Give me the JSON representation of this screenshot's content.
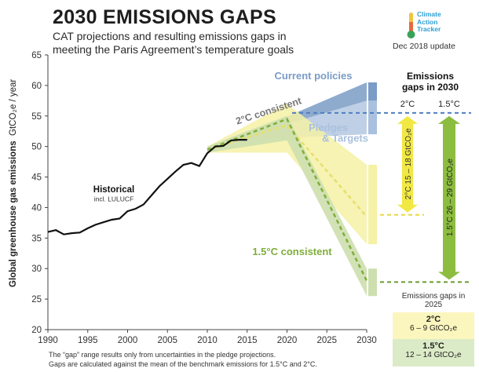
{
  "header": {
    "title": "2030 EMISSIONS GAPS",
    "subtitle": "CAT projections and resulting emissions gaps in meeting the Paris Agreement’s temperature goals",
    "date": "Dec 2018 update",
    "logo": [
      "Climate",
      "Action",
      "Tracker"
    ]
  },
  "colors": {
    "historical": "#111111",
    "current_policies": "#7a9cc6",
    "pledges": "#a9c0de",
    "two_c": "#e6e06b",
    "two_c_band": "#f5f1a6",
    "one_five_c": "#7fae3a",
    "one_five_c_band": "#cddfae"
  },
  "chart_data": {
    "type": "line",
    "ylabel": "Global greenhouse gas emissions",
    "yunit": "GtCO₂e / year",
    "xlim": [
      1990,
      2030
    ],
    "ylim": [
      20,
      65
    ],
    "xticks": [
      1990,
      1995,
      2000,
      2005,
      2010,
      2015,
      2020,
      2025,
      2030
    ],
    "yticks": [
      20,
      25,
      30,
      35,
      40,
      45,
      50,
      55,
      60,
      65
    ],
    "grid": false,
    "series": [
      {
        "name": "Historical",
        "note": "incl. LULUCF",
        "x": [
          1990,
          1991,
          1992,
          1993,
          1994,
          1995,
          1996,
          1997,
          1998,
          1999,
          2000,
          2001,
          2002,
          2003,
          2004,
          2005,
          2006,
          2007,
          2008,
          2009,
          2010,
          2011,
          2012,
          2013,
          2014,
          2015
        ],
        "y": [
          36.0,
          36.3,
          35.6,
          35.8,
          35.9,
          36.6,
          37.2,
          37.6,
          38.0,
          38.2,
          39.4,
          39.8,
          40.5,
          42.0,
          43.5,
          44.7,
          45.9,
          47.0,
          47.3,
          46.8,
          48.9,
          50.0,
          50.1,
          51.0,
          51.1,
          51.1
        ]
      },
      {
        "name": "Current policies",
        "x": [
          2013,
          2030
        ],
        "upper": [
          51.0,
          60.5
        ],
        "lower": [
          51.0,
          57.5
        ]
      },
      {
        "name": "Pledges & Targets",
        "x": [
          2013,
          2030
        ],
        "upper": [
          51.0,
          57.5
        ],
        "lower": [
          51.0,
          52.0
        ]
      },
      {
        "name": "2°C consistent",
        "x": [
          2010,
          2020,
          2030
        ],
        "mean": [
          49.5,
          53.5,
          38.5
        ],
        "upper": [
          50.0,
          57.0,
          47.0
        ],
        "lower": [
          49.0,
          49.0,
          34.0
        ]
      },
      {
        "name": "1.5°C consistent",
        "x": [
          2010,
          2020,
          2030
        ],
        "mean": [
          49.5,
          54.5,
          28.0
        ],
        "upper": [
          50.0,
          55.0,
          30.0
        ],
        "lower": [
          49.0,
          51.0,
          25.5
        ]
      }
    ],
    "benchmarks_2030": {
      "two_c": 38.8,
      "one_five_c": 27.8,
      "pledges_mean": 55.5
    }
  },
  "gaps_2030": {
    "title": "Emissions gaps in 2030",
    "two_c": {
      "label": "2°C",
      "range": "15 – 18 GtCO₂e"
    },
    "one_five_c": {
      "label": "1.5°C",
      "range": "26 – 29 GtCO₂e"
    }
  },
  "gaps_2025": {
    "title": "Emissions gaps in 2025",
    "two_c": {
      "label": "2°C",
      "range": "6 – 9  GtCO₂e"
    },
    "one_five_c": {
      "label": "1.5°C",
      "range": "12 – 14  GtCO₂e"
    }
  },
  "footnote": [
    "The “gap” range results only from uncertainties in the pledge projections.",
    "Gaps are calculated against the mean of the benchmark emissions for 1.5°C and 2°C."
  ]
}
